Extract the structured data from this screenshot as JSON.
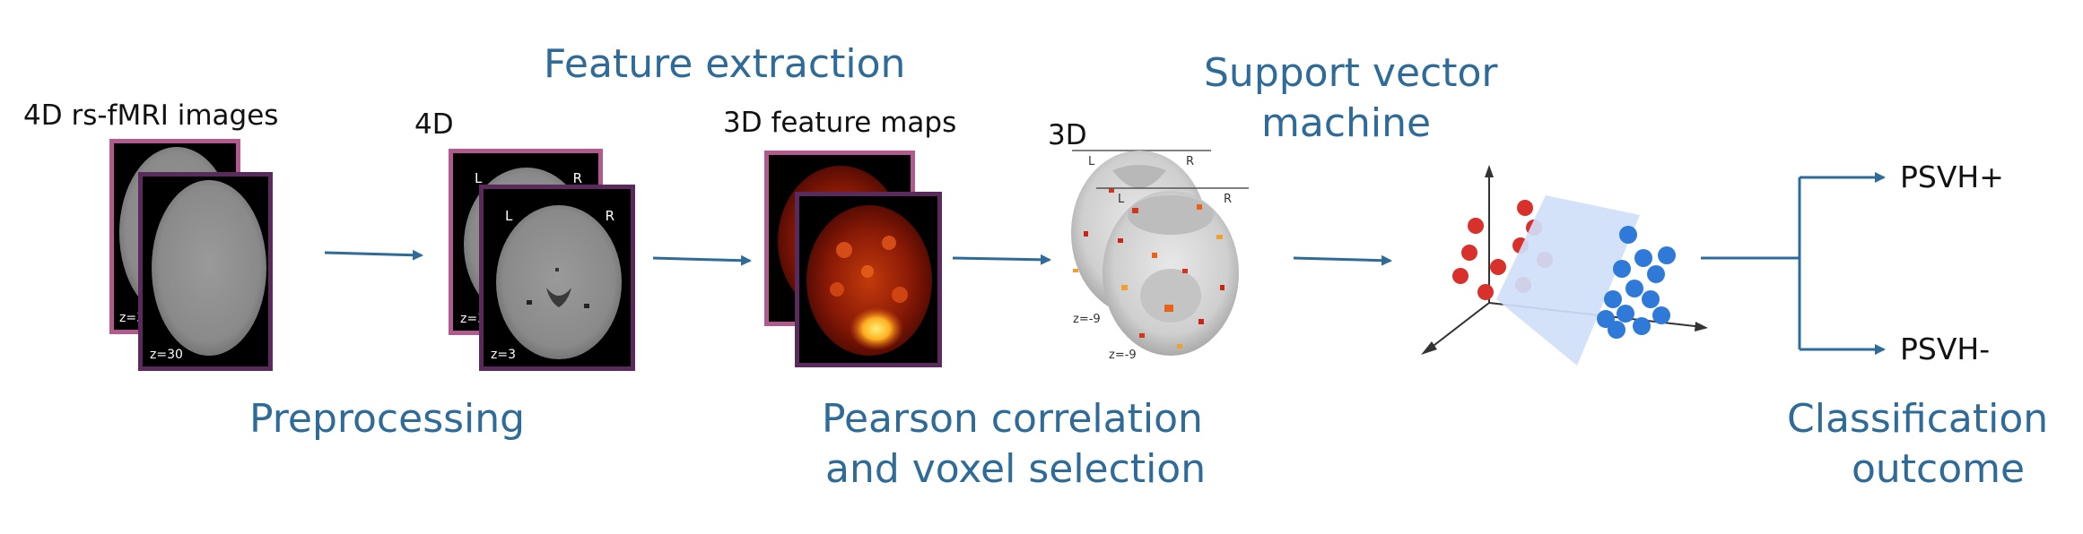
{
  "stages": {
    "preprocessing": "Preprocessing",
    "feature_extraction": "Feature extraction",
    "pearson_line1": "Pearson correlation",
    "pearson_line2": "and voxel selection",
    "svm_line1": "Support vector",
    "svm_line2": "machine",
    "classification_line1": "Classification",
    "classification_line2": "outcome"
  },
  "inputs": {
    "rsfmri_label": "4D rs-fMRI images",
    "preproc_label": "4D",
    "feature_maps_label": "3D feature maps",
    "selected_label": "3D"
  },
  "slices": {
    "raw_back_z": "z=3",
    "raw_front_z": "z=30",
    "preproc_back_z": "z=3",
    "preproc_front_z": "z=3",
    "sel_back_z": "z=-9",
    "sel_front_z": "z=-9",
    "left": "L",
    "right": "R"
  },
  "outcomes": {
    "positive": "PSVH+",
    "negative": "PSVH-"
  },
  "colors": {
    "stage_text": "#2f6b98",
    "arrow": "#2f6b98",
    "frame_pink": "#b05a8e",
    "frame_purple": "#5a2a5c",
    "class_red": "#d9302c",
    "class_blue": "#2f7ad9",
    "hyperplane": "#cfe0f8"
  }
}
